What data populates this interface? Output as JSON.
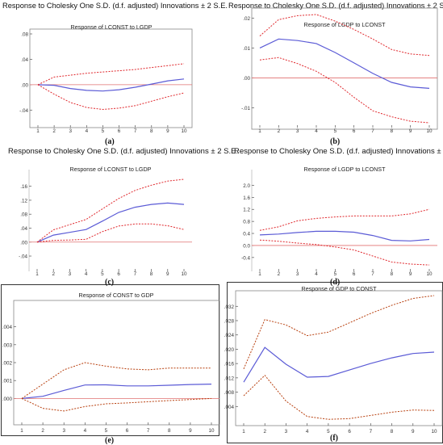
{
  "header_text": "Response to Cholesky One S.D. (d.f. adjusted) Innovations ± 2 S.E.",
  "colors": {
    "response": "#5b5bd6",
    "band": "#e0282d",
    "band_ef": "#b8400f",
    "zero": "#e07070",
    "axis": "#444444"
  },
  "chart_data": [
    {
      "caption": "(a)",
      "type": "line",
      "title": "Response of LCONST to LGDP",
      "x": [
        1,
        2,
        3,
        4,
        5,
        6,
        7,
        8,
        9,
        10
      ],
      "ylim": [
        -0.06,
        0.08
      ],
      "yticks": [
        ".08",
        ".04",
        ".00",
        "-.04"
      ],
      "ytick_values": [
        0.08,
        0.04,
        0.0,
        -0.04
      ],
      "series": [
        {
          "role": "response",
          "values": [
            0,
            -0.001,
            -0.006,
            -0.009,
            -0.01,
            -0.008,
            -0.004,
            0.001,
            0.006,
            0.009
          ]
        },
        {
          "role": "upper",
          "values": [
            0,
            0.012,
            0.015,
            0.018,
            0.02,
            0.022,
            0.024,
            0.027,
            0.03,
            0.033
          ]
        },
        {
          "role": "lower",
          "values": [
            0,
            -0.015,
            -0.028,
            -0.036,
            -0.039,
            -0.037,
            -0.033,
            -0.026,
            -0.019,
            -0.013
          ]
        }
      ]
    },
    {
      "caption": "(b)",
      "type": "line",
      "title": "Response of LGDP to LCONST",
      "x": [
        1,
        2,
        3,
        4,
        5,
        6,
        7,
        8,
        9,
        10
      ],
      "ylim": [
        -0.015,
        0.022
      ],
      "yticks": [
        ".02",
        ".01",
        ".00",
        "-.01"
      ],
      "ytick_values": [
        0.02,
        0.01,
        0.0,
        -0.01
      ],
      "series": [
        {
          "role": "response",
          "values": [
            0.01,
            0.013,
            0.0125,
            0.0115,
            0.0085,
            0.005,
            0.0015,
            -0.0015,
            -0.003,
            -0.0035
          ]
        },
        {
          "role": "upper",
          "values": [
            0.014,
            0.0195,
            0.0208,
            0.0212,
            0.019,
            0.0162,
            0.013,
            0.0095,
            0.008,
            0.0075
          ]
        },
        {
          "role": "lower",
          "values": [
            0.006,
            0.0068,
            0.0048,
            0.0022,
            -0.0015,
            -0.0065,
            -0.011,
            -0.013,
            -0.0145,
            -0.015
          ]
        }
      ]
    },
    {
      "caption": "(c)",
      "type": "line",
      "title": "Response of LCONST to LGDP",
      "x": [
        1,
        2,
        3,
        4,
        5,
        6,
        7,
        8,
        9,
        10
      ],
      "ylim": [
        -0.07,
        0.18
      ],
      "yticks": [
        ".16",
        ".12",
        ".08",
        ".04",
        ".00",
        "-.04"
      ],
      "ytick_values": [
        0.16,
        0.12,
        0.08,
        0.04,
        0.0,
        -0.04
      ],
      "series": [
        {
          "role": "response",
          "values": [
            0,
            0.02,
            0.028,
            0.036,
            0.06,
            0.085,
            0.1,
            0.108,
            0.112,
            0.108
          ]
        },
        {
          "role": "upper",
          "values": [
            0,
            0.035,
            0.05,
            0.065,
            0.095,
            0.125,
            0.148,
            0.163,
            0.175,
            0.18
          ]
        },
        {
          "role": "lower",
          "values": [
            0,
            0.005,
            0.006,
            0.008,
            0.03,
            0.046,
            0.052,
            0.052,
            0.047,
            0.036
          ]
        }
      ]
    },
    {
      "caption": "(d)",
      "type": "line",
      "title": "Response of LGDP to LCONST",
      "x": [
        1,
        2,
        3,
        4,
        5,
        6,
        7,
        8,
        9,
        10
      ],
      "ylim": [
        -0.7,
        2.2
      ],
      "yticks": [
        "2.0",
        "1.6",
        "1.2",
        "0.8",
        "0.4",
        "0.0",
        "-0.4"
      ],
      "ytick_values": [
        2.0,
        1.6,
        1.2,
        0.8,
        0.4,
        0.0,
        -0.4
      ],
      "series": [
        {
          "role": "response",
          "values": [
            0.35,
            0.38,
            0.43,
            0.47,
            0.47,
            0.44,
            0.33,
            0.17,
            0.15,
            0.2
          ]
        },
        {
          "role": "upper",
          "values": [
            0.5,
            0.62,
            0.82,
            0.9,
            0.95,
            0.98,
            0.98,
            0.98,
            1.05,
            1.2
          ]
        },
        {
          "role": "lower",
          "values": [
            0.18,
            0.14,
            0.08,
            0.03,
            -0.05,
            -0.15,
            -0.35,
            -0.55,
            -0.62,
            -0.65
          ]
        }
      ]
    },
    {
      "caption": "(e)",
      "type": "line",
      "title": "Response of CONST to GDP",
      "x": [
        1,
        2,
        3,
        4,
        5,
        6,
        7,
        8,
        9,
        10
      ],
      "ylim": [
        -0.0012,
        0.0052
      ],
      "yticks": [
        ".004",
        ".003",
        ".002",
        ".001",
        ".000"
      ],
      "ytick_values": [
        0.004,
        0.003,
        0.002,
        0.001,
        0.0
      ],
      "series": [
        {
          "role": "response",
          "values": [
            0,
            0.00012,
            0.00045,
            0.00075,
            0.00076,
            0.0007,
            0.0007,
            0.00074,
            0.00078,
            0.0008
          ]
        },
        {
          "role": "upper",
          "values": [
            0,
            0.0008,
            0.0016,
            0.002,
            0.0018,
            0.00165,
            0.0016,
            0.0017,
            0.0017,
            0.0017
          ]
        },
        {
          "role": "lower",
          "values": [
            0,
            -0.00055,
            -0.0007,
            -0.00045,
            -0.0003,
            -0.00025,
            -0.00018,
            -0.00012,
            -6e-05,
            0
          ]
        }
      ]
    },
    {
      "caption": "(f)",
      "type": "line",
      "title": "Response of GDP to CONST",
      "x": [
        1,
        2,
        3,
        4,
        5,
        6,
        7,
        8,
        9,
        10
      ],
      "ylim": [
        0.0,
        0.035
      ],
      "yticks": [
        ".032",
        ".028",
        ".024",
        ".020",
        ".016",
        ".012",
        ".008",
        ".004"
      ],
      "ytick_values": [
        0.032,
        0.028,
        0.024,
        0.02,
        0.016,
        0.012,
        0.008,
        0.004
      ],
      "series": [
        {
          "role": "response",
          "values": [
            0.0108,
            0.0205,
            0.0158,
            0.0122,
            0.0124,
            0.0142,
            0.016,
            0.0176,
            0.0188,
            0.0192
          ]
        },
        {
          "role": "upper",
          "values": [
            0.0145,
            0.0283,
            0.0268,
            0.0238,
            0.0248,
            0.0274,
            0.03,
            0.0323,
            0.0342,
            0.035
          ]
        },
        {
          "role": "lower",
          "values": [
            0.007,
            0.0127,
            0.0055,
            0.0012,
            0.0004,
            0.0006,
            0.0015,
            0.0024,
            0.003,
            0.0029
          ]
        }
      ]
    }
  ]
}
